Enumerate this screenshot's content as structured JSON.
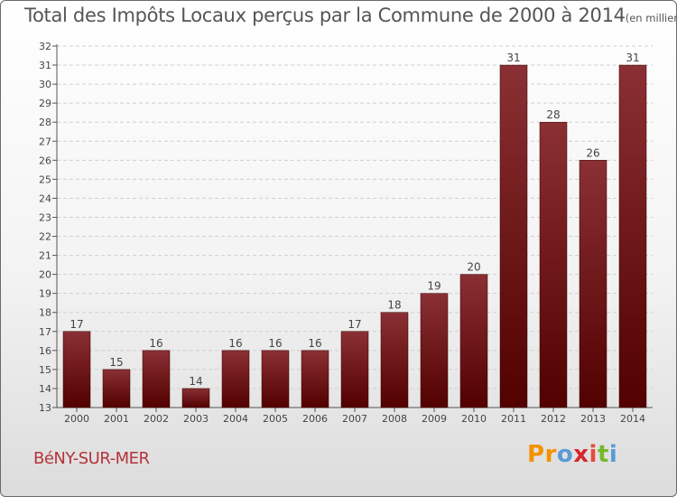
{
  "title": {
    "main": "Total des Impôts Locaux perçus par la Commune de 2000 à 2014",
    "unit": "(en milliers d'€)"
  },
  "commune": "BéNY-SUR-MER",
  "logo": {
    "text": "Proxiti",
    "colors": [
      "#f39200",
      "#f39200",
      "#5b9bd5",
      "#d6262c",
      "#e74c3c",
      "#76b82a",
      "#5b9bd5"
    ]
  },
  "chart_data": {
    "type": "bar",
    "title": "Total des Impôts Locaux perçus par la Commune de 2000 à 2014",
    "xlabel": "",
    "ylabel": "",
    "categories": [
      "2000",
      "2001",
      "2002",
      "2003",
      "2004",
      "2005",
      "2006",
      "2007",
      "2008",
      "2009",
      "2010",
      "2011",
      "2012",
      "2013",
      "2014"
    ],
    "values": [
      17,
      15,
      16,
      14,
      16,
      16,
      16,
      17,
      18,
      19,
      20,
      31,
      28,
      26,
      31
    ],
    "ylim": [
      13,
      32
    ],
    "yticks": [
      13,
      14,
      15,
      16,
      17,
      18,
      19,
      20,
      21,
      22,
      23,
      24,
      25,
      26,
      27,
      28,
      29,
      30,
      31,
      32
    ],
    "grid": true,
    "bar_color_top": "#8a3034",
    "bar_color_bottom": "#520000"
  }
}
